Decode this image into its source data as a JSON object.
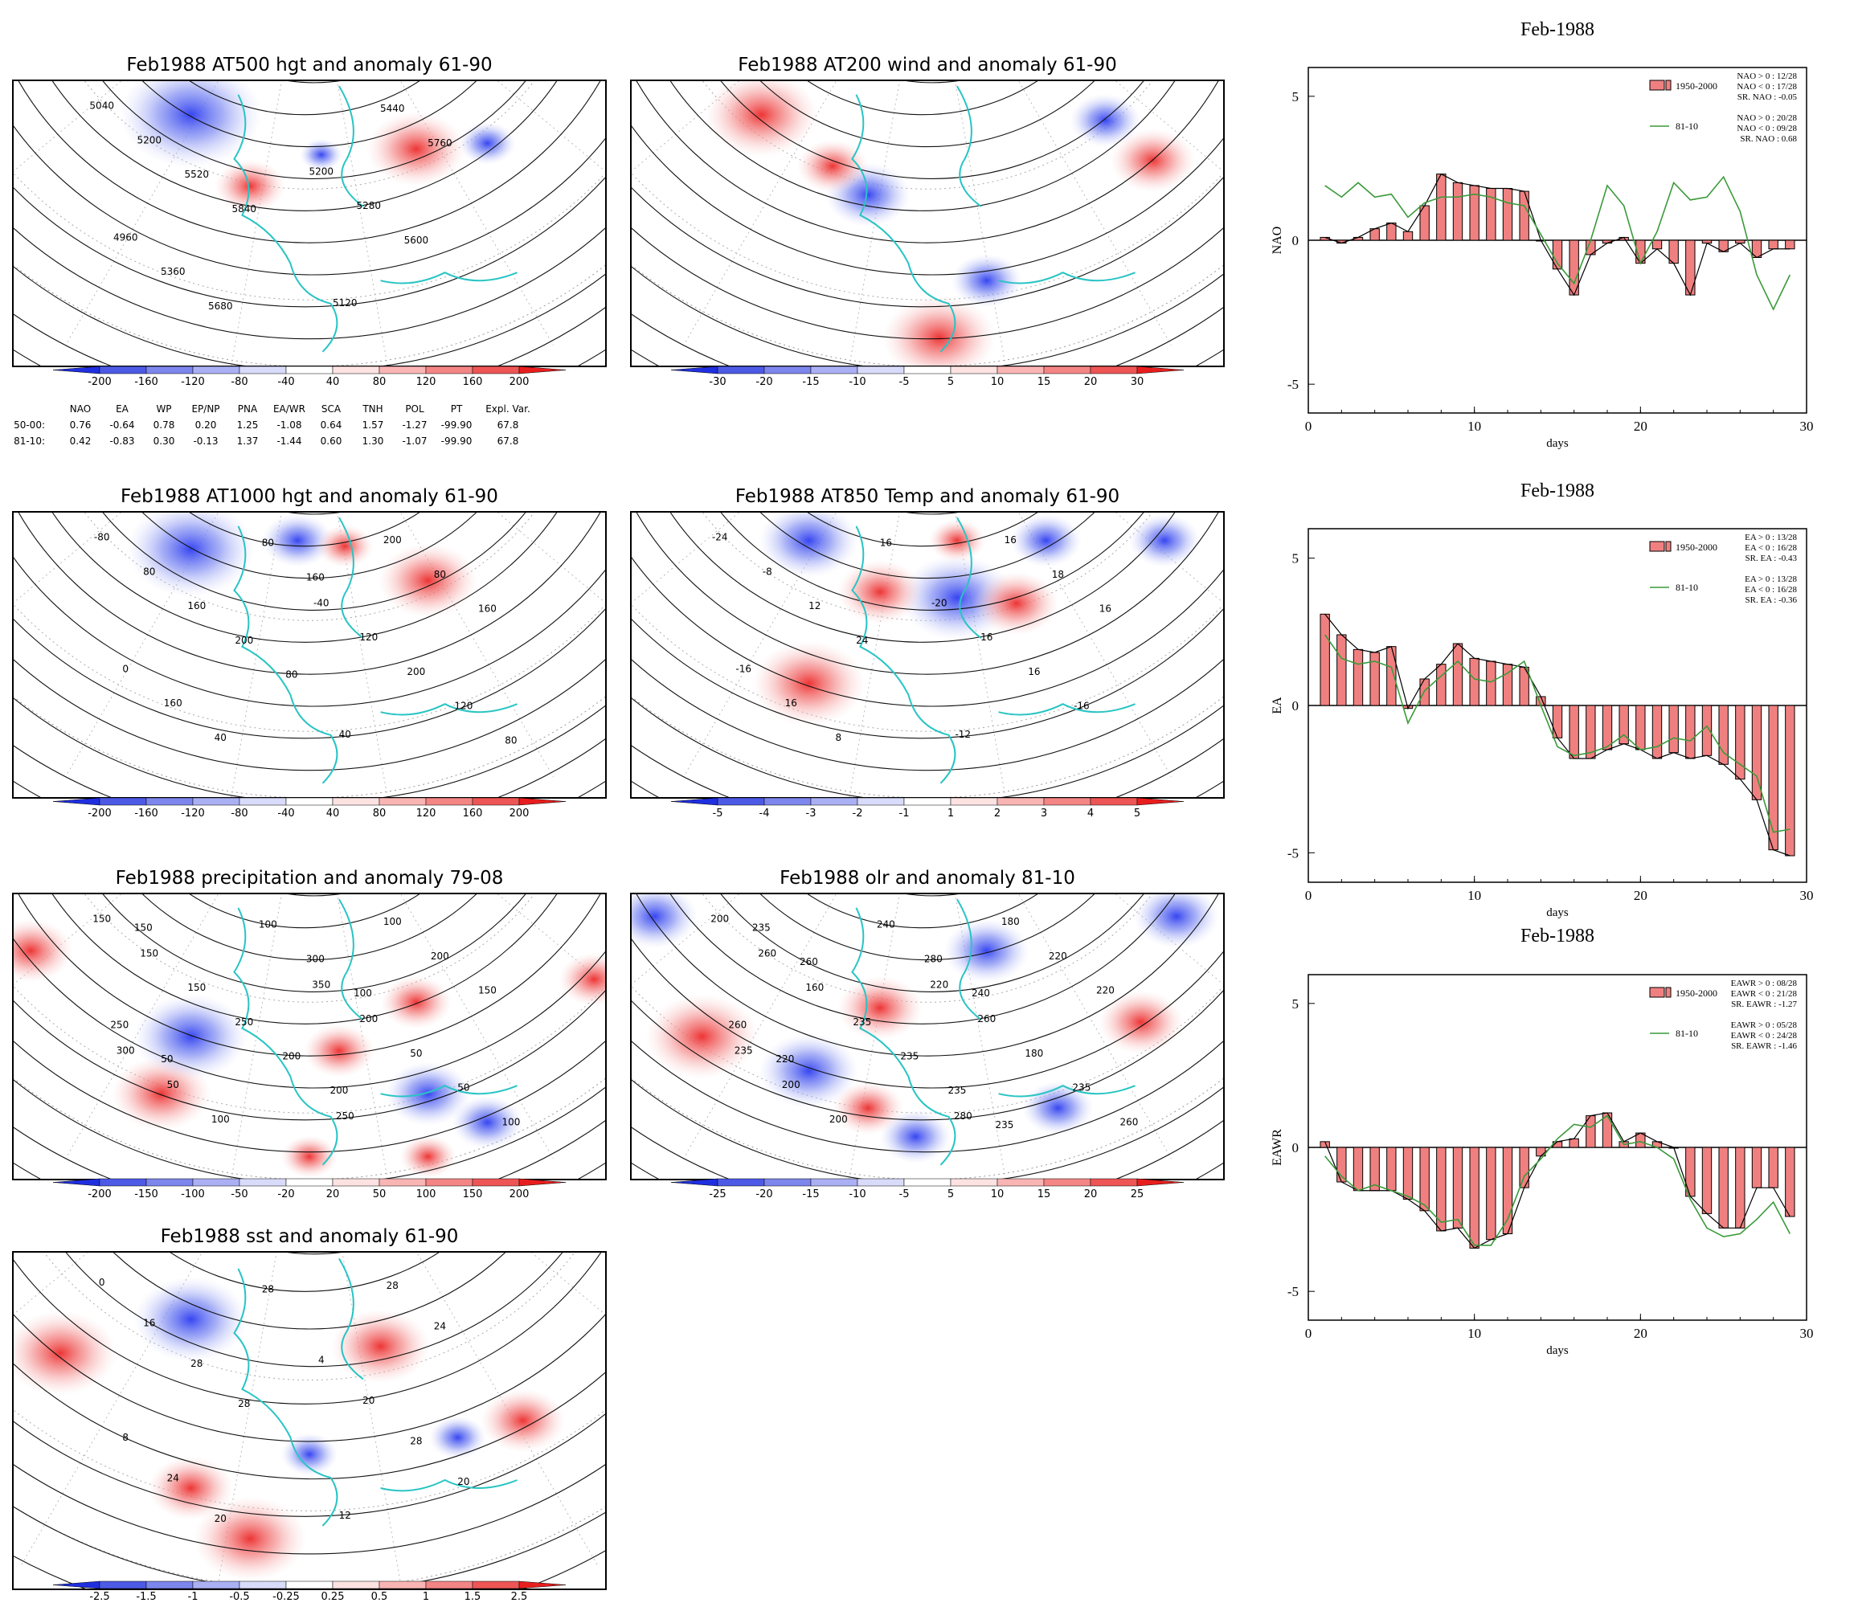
{
  "maps": [
    {
      "title": "Feb1988 AT500 hgt and anomaly 61-90",
      "contour_labels": [
        "5040",
        "5200",
        "4960",
        "5120",
        "5200",
        "5280",
        "5360",
        "5440",
        "5520",
        "5600",
        "5680",
        "5760",
        "5840"
      ],
      "colorbar": [
        "-200",
        "-160",
        "-120",
        "-80",
        "-40",
        "40",
        "80",
        "120",
        "160",
        "200"
      ]
    },
    {
      "title": "Feb1988 AT200 wind and anomaly 61-90",
      "contour_labels": [],
      "colorbar": [
        "-30",
        "-20",
        "-15",
        "-10",
        "-5",
        "5",
        "10",
        "15",
        "20",
        "30"
      ]
    },
    {
      "title": "Feb1988 AT1000 hgt and anomaly 61-90",
      "contour_labels": [
        "-80",
        "-40",
        "0",
        "40",
        "80",
        "120",
        "160",
        "200",
        "160",
        "200",
        "40",
        "80",
        "200",
        "120",
        "80",
        "160",
        "80",
        "80",
        "160"
      ],
      "colorbar": [
        "-200",
        "-160",
        "-120",
        "-80",
        "-40",
        "40",
        "80",
        "120",
        "160",
        "200"
      ]
    },
    {
      "title": "Feb1988 AT850 Temp and anomaly 61-90",
      "contour_labels": [
        "-24",
        "-20",
        "-16",
        "-12",
        "-8",
        "16",
        "16",
        "16",
        "12",
        "16",
        "8",
        "18",
        "24",
        "-16",
        "16",
        "16"
      ],
      "colorbar": [
        "-5",
        "-4",
        "-3",
        "-2",
        "-1",
        "1",
        "2",
        "3",
        "4",
        "5"
      ]
    },
    {
      "title": "Feb1988 precipitation and anomaly 79-08",
      "contour_labels": [
        "150",
        "350",
        "300",
        "250",
        "150",
        "200",
        "50",
        "100",
        "150",
        "50",
        "100",
        "200",
        "250",
        "50",
        "100",
        "150",
        "200",
        "100",
        "300",
        "250",
        "200",
        "150",
        "100",
        "50"
      ],
      "colorbar": [
        "-200",
        "-150",
        "-100",
        "-50",
        "-20",
        "20",
        "50",
        "100",
        "150",
        "200"
      ]
    },
    {
      "title": "Feb1988 olr and anomaly 81-10",
      "contour_labels": [
        "200",
        "220",
        "235",
        "280",
        "260",
        "260",
        "200",
        "180",
        "160",
        "180",
        "200",
        "220",
        "235",
        "235",
        "240",
        "220",
        "235",
        "260",
        "280",
        "260",
        "235",
        "235",
        "240",
        "220",
        "235",
        "260"
      ],
      "colorbar": [
        "-25",
        "-20",
        "-15",
        "-10",
        "-5",
        "5",
        "10",
        "15",
        "20",
        "25"
      ]
    },
    {
      "title": "Feb1988 sst and anomaly 61-90",
      "contour_labels": [
        "0",
        "4",
        "8",
        "12",
        "16",
        "20",
        "24",
        "28",
        "28",
        "28",
        "20",
        "24",
        "28",
        "20",
        "28"
      ],
      "colorbar": [
        "-2.5",
        "-1.5",
        "-1",
        "-0.5",
        "-0.25",
        "0.25",
        "0.5",
        "1",
        "1.5",
        "2.5"
      ]
    }
  ],
  "index_table": {
    "headers": [
      "NAO",
      "EA",
      "WP",
      "EP/NP",
      "PNA",
      "EA/WR",
      "SCA",
      "TNH",
      "POL",
      "PT",
      "Expl. Var."
    ],
    "rows": [
      {
        "label": "50-00:",
        "values": [
          "0.76",
          "-0.64",
          "0.78",
          "0.20",
          "1.25",
          "-1.08",
          "0.64",
          "1.57",
          "-1.27",
          "-99.90",
          "67.8"
        ]
      },
      {
        "label": "81-10:",
        "values": [
          "0.42",
          "-0.83",
          "0.30",
          "-0.13",
          "1.37",
          "-1.44",
          "0.60",
          "1.30",
          "-1.07",
          "-99.90",
          "67.8"
        ]
      }
    ]
  },
  "colors": {
    "bar_fill": "#f08080",
    "line_green": "#3a9a3a",
    "coast": "#29c4c4",
    "neg_strong": "#1f2fe0",
    "pos_strong": "#e81e1e"
  },
  "chart_data": [
    {
      "type": "bar",
      "title": "Feb-1988",
      "xlabel": "days",
      "ylabel": "NAO",
      "xlim": [
        0,
        30
      ],
      "ylim": [
        -6,
        6
      ],
      "xticks": [
        "0",
        "10",
        "20",
        "30"
      ],
      "yticks": [
        "5",
        "0",
        "-5"
      ],
      "legend": {
        "bar_label": "1950-2000",
        "line_label": "81-10",
        "bar_stats": [
          "NAO > 0 : 12/28",
          "NAO < 0 : 17/28",
          "SR. NAO : -0.05"
        ],
        "line_stats": [
          "NAO > 0 : 20/28",
          "NAO < 0 : 09/28",
          "SR. NAO : 0.68"
        ]
      },
      "series": [
        {
          "name": "1950-2000",
          "x": [
            1,
            2,
            3,
            4,
            5,
            6,
            7,
            8,
            9,
            10,
            11,
            12,
            13,
            14,
            15,
            16,
            17,
            18,
            19,
            20,
            21,
            22,
            23,
            24,
            25,
            26,
            27,
            28,
            29
          ],
          "values": [
            0.1,
            -0.1,
            0.1,
            0.4,
            0.6,
            0.3,
            1.2,
            2.3,
            2.0,
            1.9,
            1.8,
            1.8,
            1.7,
            0.0,
            -1.0,
            -1.9,
            -0.5,
            -0.1,
            0.1,
            -0.8,
            -0.3,
            -0.8,
            -1.9,
            -0.1,
            -0.4,
            -0.1,
            -0.6,
            -0.3,
            -0.3
          ]
        },
        {
          "name": "81-10",
          "x": [
            1,
            2,
            3,
            4,
            5,
            6,
            7,
            8,
            9,
            10,
            11,
            12,
            13,
            14,
            15,
            16,
            17,
            18,
            19,
            20,
            21,
            22,
            23,
            24,
            25,
            26,
            27,
            28,
            29
          ],
          "values": [
            1.9,
            1.5,
            2.0,
            1.5,
            1.6,
            0.8,
            1.3,
            1.5,
            1.5,
            1.6,
            1.5,
            1.3,
            1.2,
            0.2,
            -0.8,
            -1.5,
            0.0,
            1.9,
            1.2,
            -0.8,
            0.3,
            2.0,
            1.4,
            1.5,
            2.2,
            1.0,
            -1.2,
            -2.4,
            -1.2
          ]
        }
      ]
    },
    {
      "type": "bar",
      "title": "Feb-1988",
      "xlabel": "days",
      "ylabel": "EA",
      "xlim": [
        0,
        30
      ],
      "ylim": [
        -6,
        6
      ],
      "xticks": [
        "0",
        "10",
        "20",
        "30"
      ],
      "yticks": [
        "5",
        "0",
        "-5"
      ],
      "legend": {
        "bar_label": "1950-2000",
        "line_label": "81-10",
        "bar_stats": [
          "EA > 0 : 13/28",
          "EA < 0 : 16/28",
          "SR. EA : -0.43"
        ],
        "line_stats": [
          "EA > 0 : 13/28",
          "EA < 0 : 16/28",
          "SR. EA : -0.36"
        ]
      },
      "series": [
        {
          "name": "1950-2000",
          "x": [
            1,
            2,
            3,
            4,
            5,
            6,
            7,
            8,
            9,
            10,
            11,
            12,
            13,
            14,
            15,
            16,
            17,
            18,
            19,
            20,
            21,
            22,
            23,
            24,
            25,
            26,
            27,
            28,
            29
          ],
          "values": [
            3.1,
            2.4,
            1.9,
            1.8,
            2.0,
            -0.1,
            0.9,
            1.4,
            2.1,
            1.6,
            1.5,
            1.4,
            1.3,
            0.3,
            -1.1,
            -1.8,
            -1.8,
            -1.5,
            -1.3,
            -1.5,
            -1.8,
            -1.6,
            -1.8,
            -1.7,
            -2.0,
            -2.5,
            -3.2,
            -4.9,
            -5.1
          ]
        },
        {
          "name": "81-10",
          "x": [
            1,
            2,
            3,
            4,
            5,
            6,
            7,
            8,
            9,
            10,
            11,
            12,
            13,
            14,
            15,
            16,
            17,
            18,
            19,
            20,
            21,
            22,
            23,
            24,
            25,
            26,
            27,
            28,
            29
          ],
          "values": [
            2.4,
            1.6,
            1.4,
            1.5,
            1.3,
            -0.6,
            0.5,
            1.0,
            1.5,
            0.9,
            0.8,
            1.1,
            1.5,
            0.0,
            -1.4,
            -1.7,
            -1.6,
            -1.4,
            -1.0,
            -1.5,
            -1.4,
            -1.1,
            -1.2,
            -0.7,
            -1.6,
            -2.0,
            -2.4,
            -4.3,
            -4.2
          ]
        }
      ]
    },
    {
      "type": "bar",
      "title": "Feb-1988",
      "xlabel": "days",
      "ylabel": "EAWR",
      "xlim": [
        0,
        30
      ],
      "ylim": [
        -6,
        6
      ],
      "xticks": [
        "0",
        "10",
        "20",
        "30"
      ],
      "yticks": [
        "5",
        "0",
        "-5"
      ],
      "legend": {
        "bar_label": "1950-2000",
        "line_label": "81-10",
        "bar_stats": [
          "EAWR > 0 : 08/28",
          "EAWR < 0 : 21/28",
          "SR. EAWR : -1.27"
        ],
        "line_stats": [
          "EAWR > 0 : 05/28",
          "EAWR < 0 : 24/28",
          "SR. EAWR : -1.46"
        ]
      },
      "series": [
        {
          "name": "1950-2000",
          "x": [
            1,
            2,
            3,
            4,
            5,
            6,
            7,
            8,
            9,
            10,
            11,
            12,
            13,
            14,
            15,
            16,
            17,
            18,
            19,
            20,
            21,
            22,
            23,
            24,
            25,
            26,
            27,
            28,
            29
          ],
          "values": [
            0.2,
            -1.2,
            -1.5,
            -1.5,
            -1.5,
            -1.8,
            -2.2,
            -2.9,
            -2.8,
            -3.5,
            -3.2,
            -3.0,
            -1.4,
            -0.3,
            0.2,
            0.3,
            1.1,
            1.2,
            0.2,
            0.5,
            0.2,
            0.0,
            -1.7,
            -2.3,
            -2.8,
            -2.8,
            -1.4,
            -1.4,
            -2.4
          ]
        },
        {
          "name": "81-10",
          "x": [
            1,
            2,
            3,
            4,
            5,
            6,
            7,
            8,
            9,
            10,
            11,
            12,
            13,
            14,
            15,
            16,
            17,
            18,
            19,
            20,
            21,
            22,
            23,
            24,
            25,
            26,
            27,
            28,
            29
          ],
          "values": [
            -0.3,
            -1.0,
            -1.5,
            -1.3,
            -1.5,
            -1.7,
            -2.0,
            -2.6,
            -2.5,
            -3.4,
            -3.4,
            -2.5,
            -1.0,
            -0.4,
            0.3,
            0.8,
            0.7,
            1.1,
            0.1,
            0.2,
            0.0,
            -0.4,
            -1.8,
            -2.8,
            -3.1,
            -3.0,
            -2.5,
            -1.9,
            -3.0
          ]
        }
      ]
    }
  ]
}
